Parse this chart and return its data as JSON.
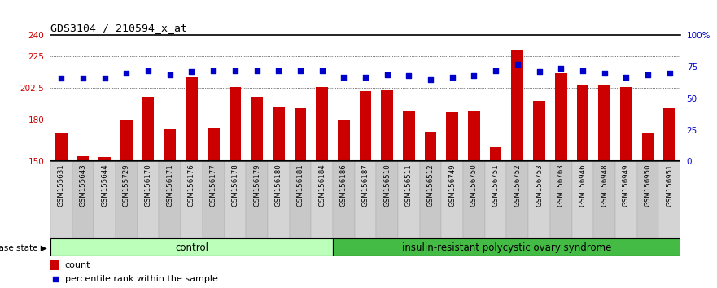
{
  "title": "GDS3104 / 210594_x_at",
  "samples": [
    "GSM155631",
    "GSM155643",
    "GSM155644",
    "GSM155729",
    "GSM156170",
    "GSM156171",
    "GSM156176",
    "GSM156177",
    "GSM156178",
    "GSM156179",
    "GSM156180",
    "GSM156181",
    "GSM156184",
    "GSM156186",
    "GSM156187",
    "GSM156510",
    "GSM156511",
    "GSM156512",
    "GSM156749",
    "GSM156750",
    "GSM156751",
    "GSM156752",
    "GSM156753",
    "GSM156763",
    "GSM156946",
    "GSM156948",
    "GSM156949",
    "GSM156950",
    "GSM156951"
  ],
  "counts": [
    170,
    154,
    153,
    180,
    196,
    173,
    210,
    174,
    203,
    196,
    189,
    188,
    203,
    180,
    200,
    201,
    186,
    171,
    185,
    186,
    160,
    229,
    193,
    213,
    204,
    204,
    203,
    170,
    188
  ],
  "percentiles": [
    66,
    66,
    66,
    70,
    72,
    69,
    71,
    72,
    72,
    72,
    72,
    72,
    72,
    67,
    67,
    69,
    68,
    65,
    67,
    68,
    72,
    77,
    71,
    74,
    72,
    70,
    67,
    69,
    70
  ],
  "n_control": 13,
  "ylim_left": [
    150,
    240
  ],
  "ylim_right": [
    0,
    100
  ],
  "yticks_left": [
    150,
    180,
    202.5,
    225,
    240
  ],
  "yticks_right": [
    0,
    25,
    50,
    75,
    100
  ],
  "ytick_labels_left": [
    "150",
    "180",
    "202.5",
    "225",
    "240"
  ],
  "ytick_labels_right": [
    "0",
    "25",
    "50",
    "75",
    "100%"
  ],
  "bar_color": "#cc0000",
  "dot_color": "#0000cc",
  "control_label": "control",
  "disease_label": "insulin-resistant polycystic ovary syndrome",
  "control_bg": "#bbffbb",
  "disease_bg": "#44bb44",
  "legend_count": "count",
  "legend_pct": "percentile rank within the sample",
  "disease_state_label": "disease state",
  "plot_bg": "#ffffff",
  "tick_bg": "#d0d0d0",
  "ymin": 150,
  "ymax": 240
}
